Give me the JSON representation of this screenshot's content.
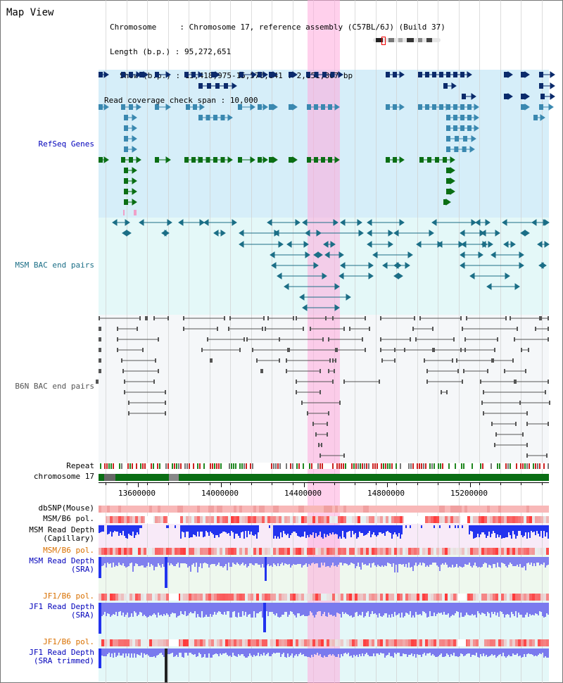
{
  "header": {
    "title": "Map View",
    "chromosome_label": "Chromosome     : ",
    "chromosome_value": "Chromosome 17, reference assembly (C57BL/6J) (Build 37)",
    "length_label": "Length (b.p.) : ",
    "length_value": "95,272,651",
    "show_label": "Show (b.p.) : ",
    "show_value": "13,418,975-15,570,841 : 2,151,867 bp",
    "span_label": "Read coverage check span : ",
    "span_value": "10,000"
  },
  "tracks": {
    "refseq": "RefSeq Genes",
    "msm_bac": "MSM BAC end pairs",
    "b6n_bac": "B6N BAC end pairs",
    "repeat": "Repeat",
    "chromosome": "chromosome 17",
    "dbsnp": "dbSNP(Mouse)",
    "msm_b6_pol_1": "MSM/B6 pol.",
    "msm_depth_cap_1": "MSM Read Depth",
    "msm_depth_cap_2": "(Capillary)",
    "msm_b6_pol_2": "MSM/B6 pol.",
    "msm_depth_sra_1": "MSM Read Depth",
    "msm_depth_sra_2": "(SRA)",
    "jf1_b6_pol_1": "JF1/B6 pol.",
    "jf1_depth_sra_1": "JF1 Read Depth",
    "jf1_depth_sra_2": "(SRA)",
    "jf1_b6_pol_2": "JF1/B6 pol.",
    "jf1_depth_trim_1": "JF1 Read Depth",
    "jf1_depth_trim_2": "(SRA trimmed)"
  },
  "axis": {
    "ticks": [
      "13600000",
      "14000000",
      "14400000",
      "14800000",
      "15200000"
    ]
  },
  "colors": {
    "highlight": "#ffaadc",
    "refseq_bg": "#d6eef9",
    "msm_bg": "#e4f8f8",
    "b6n_bg": "#f4f6f8",
    "depth_bg": "#f8eef8",
    "gene_dark": "#0b2a6b",
    "gene_mid": "#3a88b0",
    "gene_green": "#0a6e14",
    "bac_msm": "#1b6e86",
    "bac_b6n": "#555555",
    "depth_blue": "#2233ee",
    "pol_red": "#e02020",
    "label_blue": "#0000bb",
    "label_orange": "#d97000"
  }
}
